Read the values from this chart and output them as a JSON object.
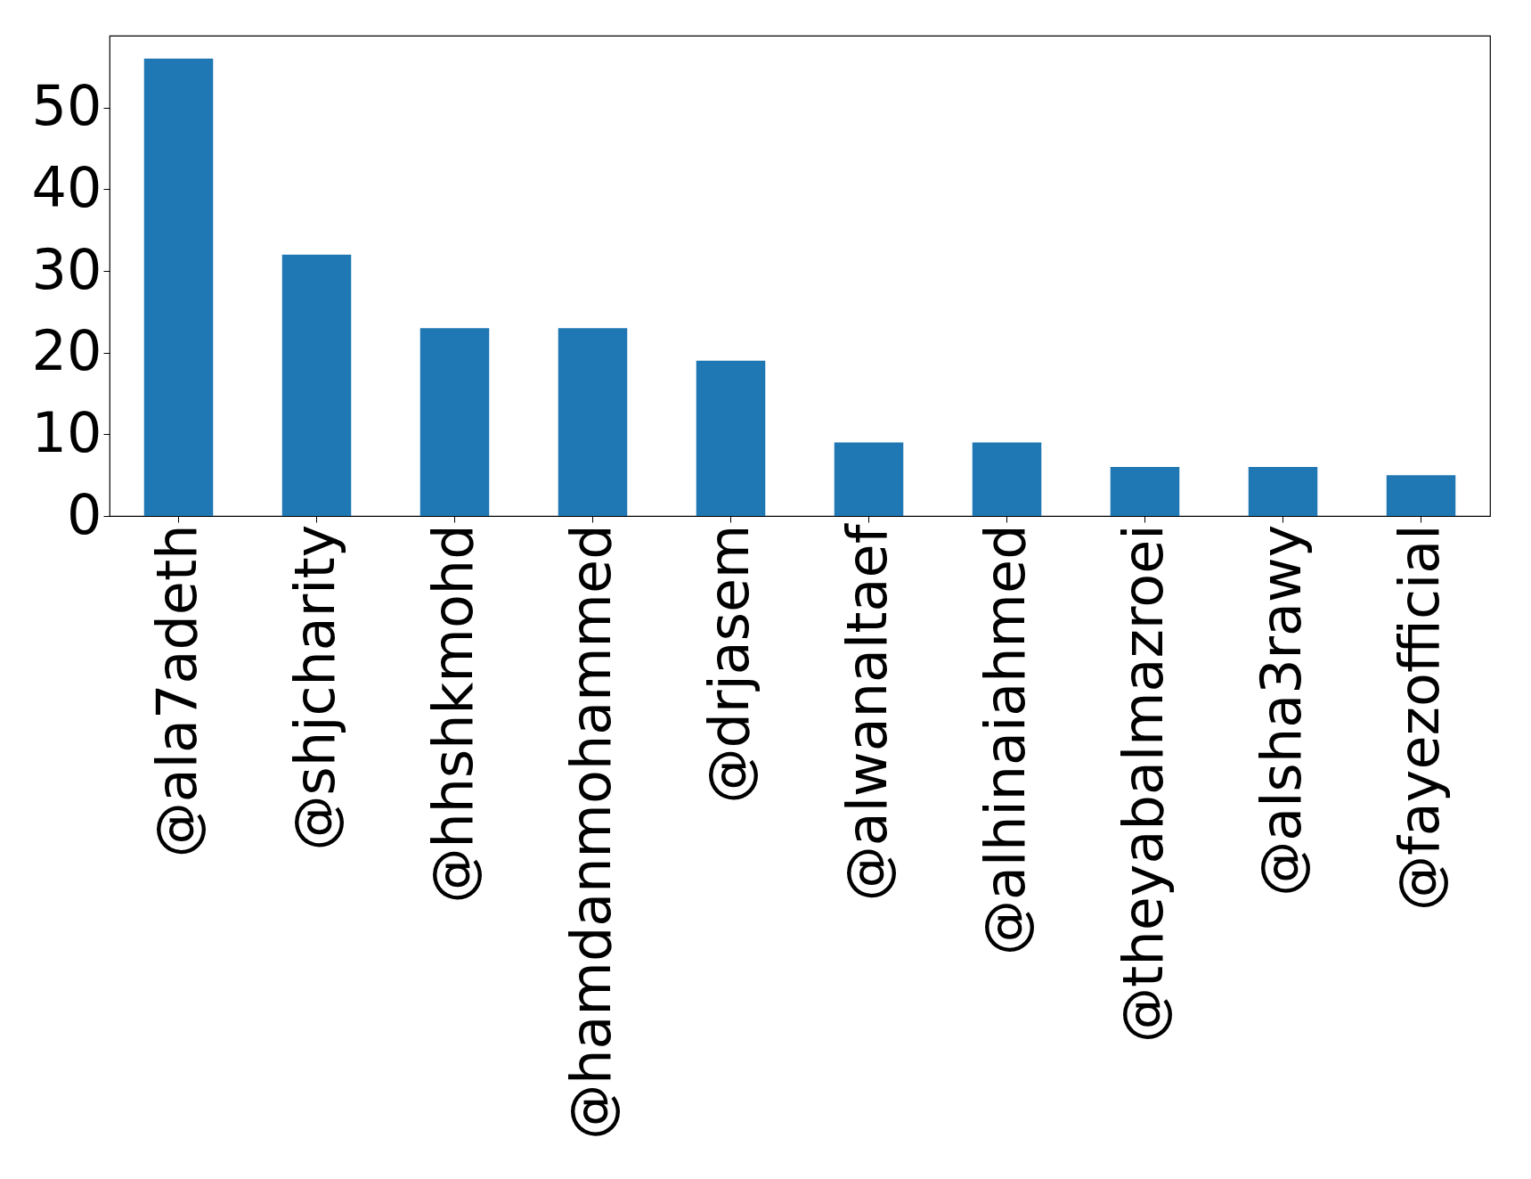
{
  "chart_data": {
    "type": "bar",
    "categories": [
      "@ala7adeth",
      "@shjcharity",
      "@hhshkmohd",
      "@hamdanmohammed",
      "@drjasem",
      "@alwanaltaef",
      "@alhinaiahmed",
      "@theyabalmazroei",
      "@alsha3rawy",
      "@fayezofficial"
    ],
    "values": [
      56,
      32,
      23,
      23,
      19,
      9,
      9,
      6,
      6,
      5
    ],
    "color": "#1f77b4",
    "ylim": [
      0,
      58.8
    ],
    "yticks": [
      0,
      10,
      20,
      30,
      40,
      50
    ],
    "grid": false
  }
}
